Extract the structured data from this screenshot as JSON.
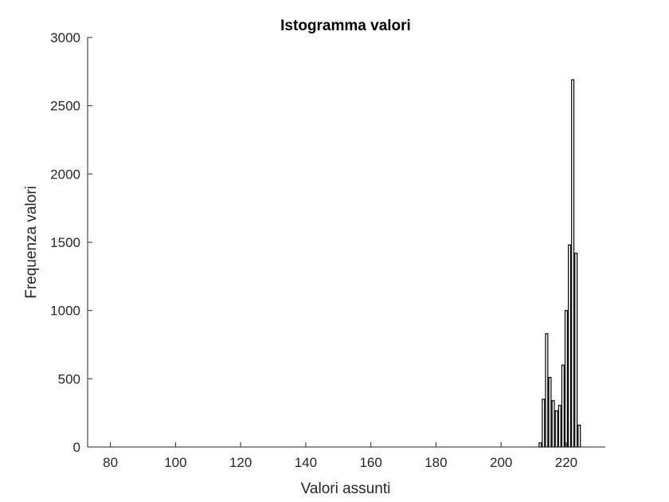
{
  "chart_data": {
    "type": "bar",
    "title": "Istogramma valori",
    "xlabel": "Valori assunti",
    "ylabel": "Frequenza valori",
    "xlim": [
      73,
      232
    ],
    "ylim": [
      0,
      3000
    ],
    "xticks": [
      80,
      100,
      120,
      140,
      160,
      180,
      200,
      220
    ],
    "yticks": [
      0,
      500,
      1000,
      1500,
      2000,
      2500,
      3000
    ],
    "x": [
      212,
      213,
      214,
      215,
      216,
      217,
      218,
      219,
      220,
      221,
      222,
      223,
      224
    ],
    "values": [
      30,
      350,
      830,
      510,
      340,
      265,
      305,
      600,
      1000,
      1480,
      2690,
      1420,
      160
    ],
    "grid": false,
    "legend": "none",
    "colors": {
      "bar_fill": "#ffffff",
      "bar_edge": "#000000",
      "axis": "#262626"
    }
  }
}
